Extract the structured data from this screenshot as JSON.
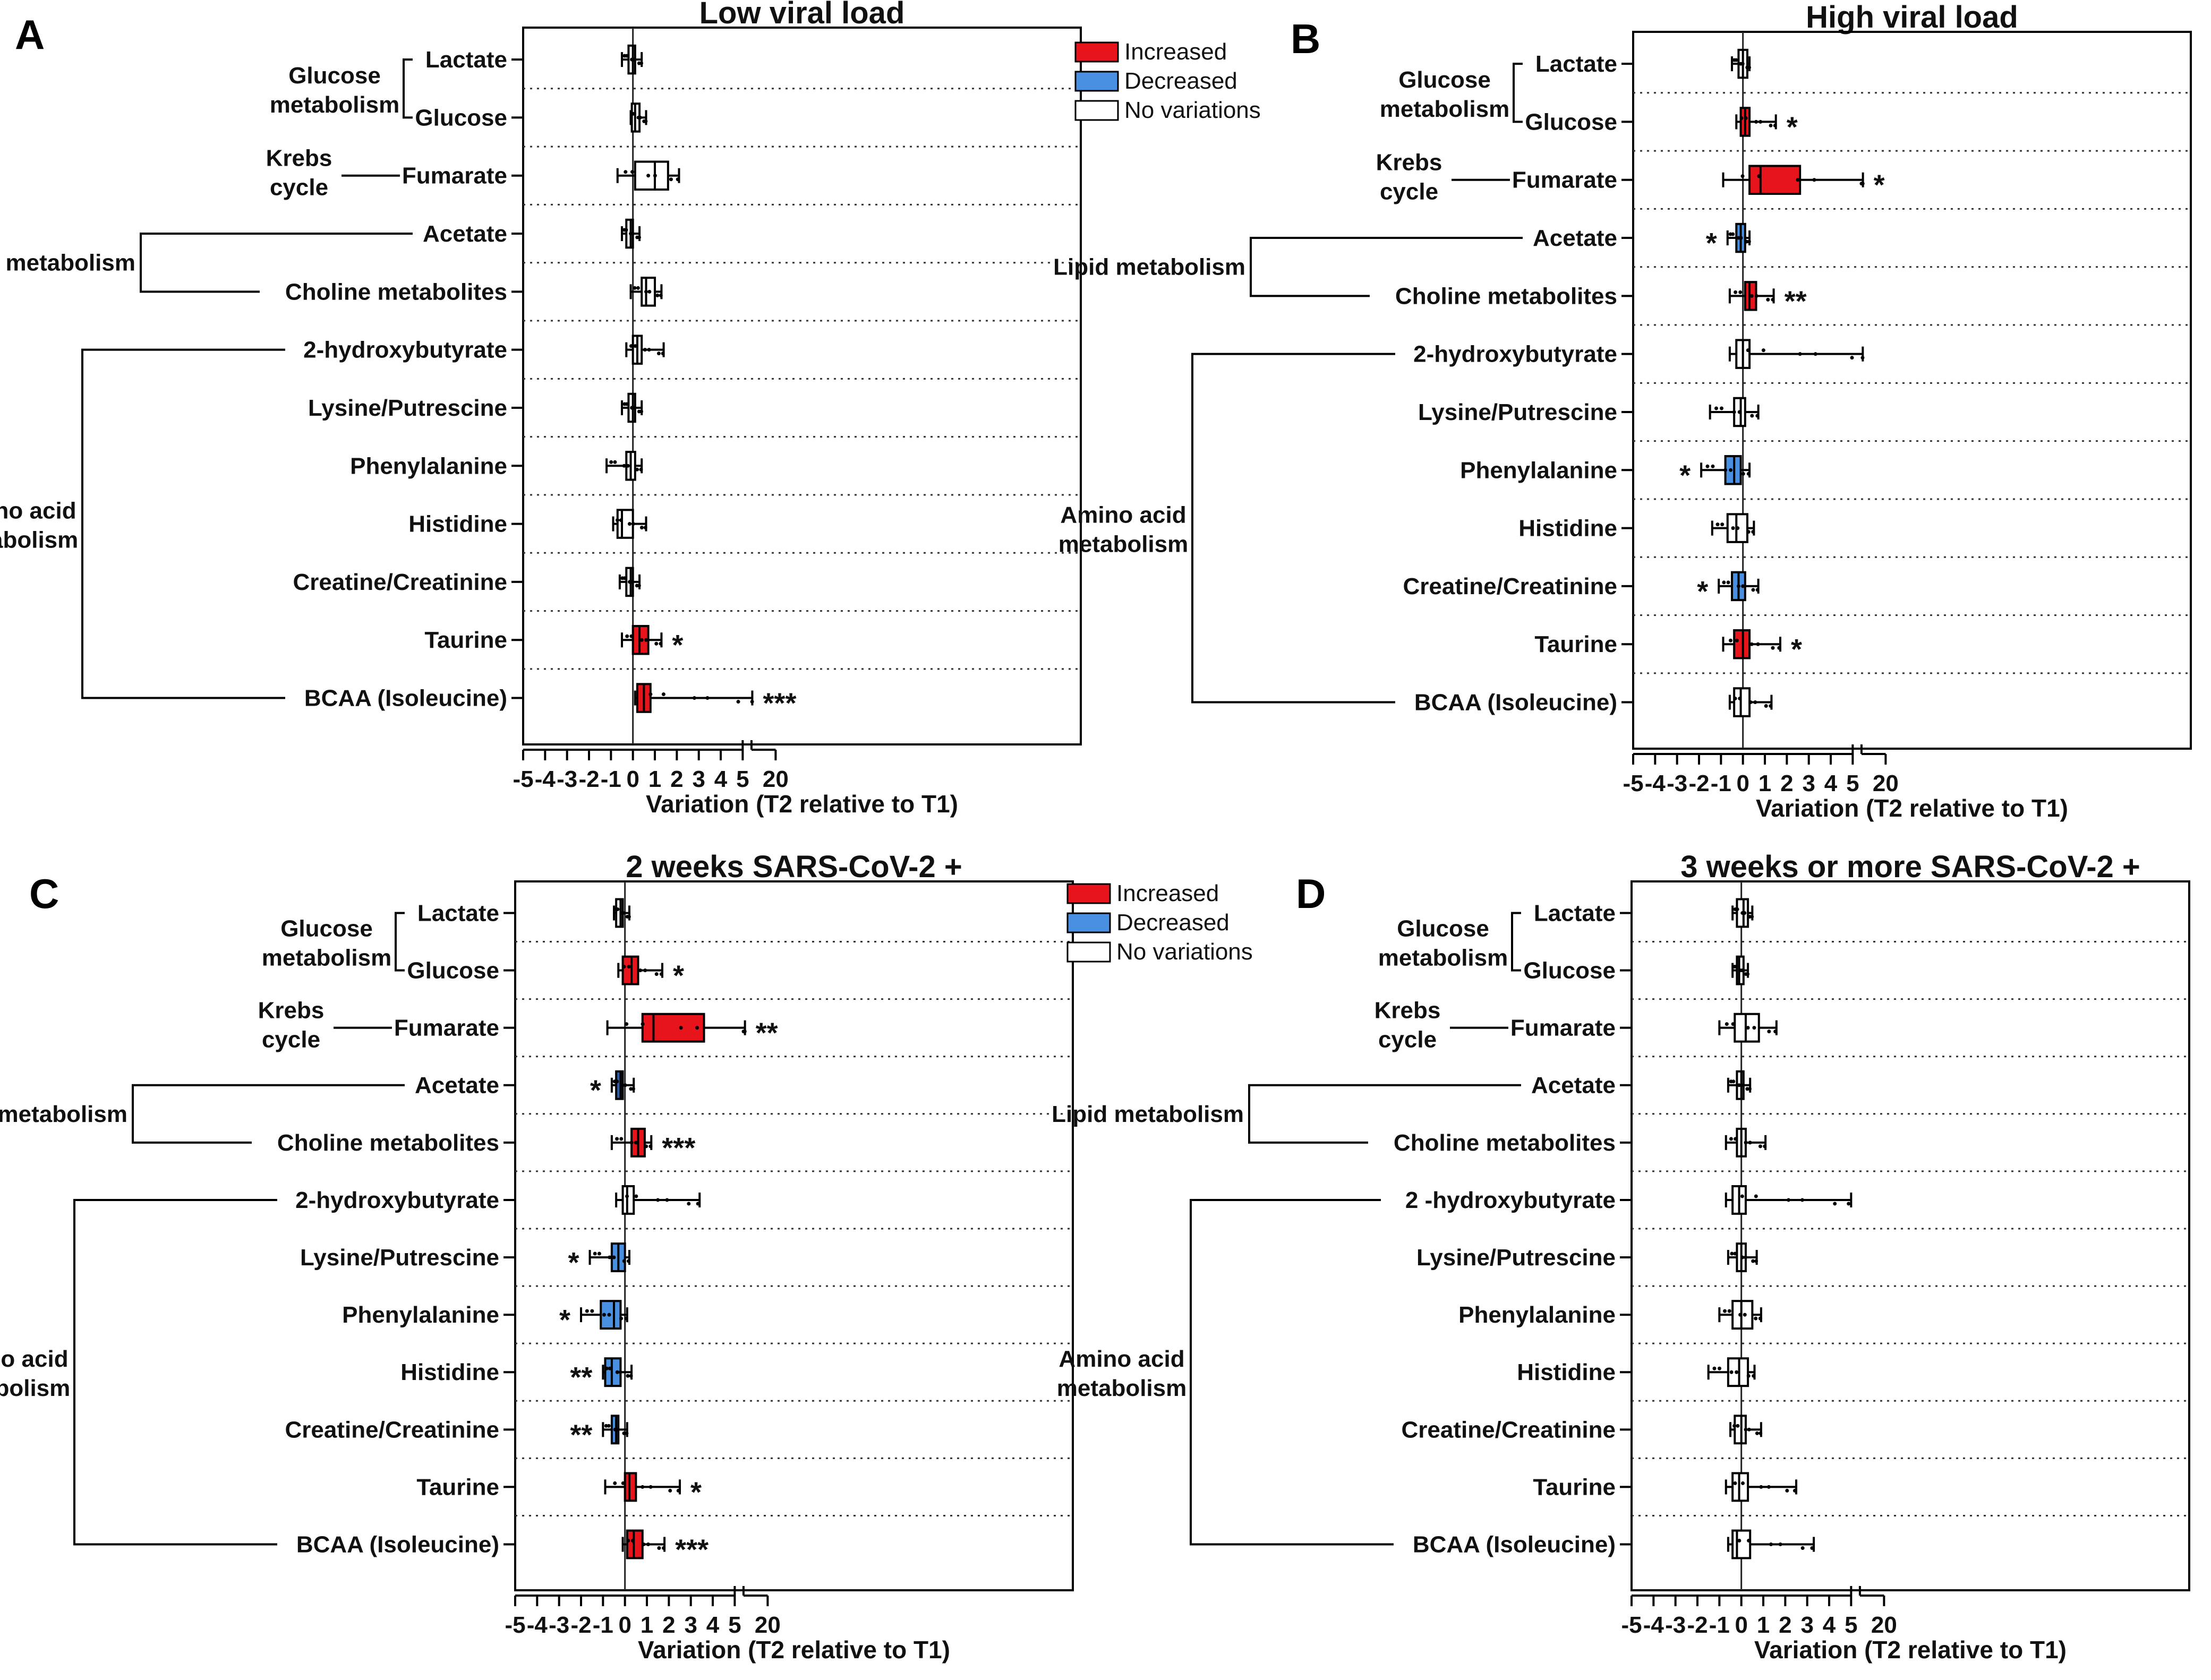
{
  "colors": {
    "increased": "#e8141c",
    "decreased": "#4a90e2",
    "none": "#ffffff",
    "decreased_dark": "#2f5fa8"
  },
  "legend": {
    "increased": "Increased",
    "decreased": "Decreased",
    "none": "No variations"
  },
  "metabolites": [
    "Lactate",
    "Glucose",
    "Fumarate",
    "Acetate",
    "Choline metabolites",
    "2-hydroxybutyrate",
    "Lysine/Putrescine",
    "Phenylalanine",
    "Histidine",
    "Creatine/Creatinine",
    "Taurine",
    "BCAA (Isoleucine)"
  ],
  "groups": [
    {
      "label": [
        "Glucose",
        "metabolism"
      ],
      "rows": [
        0,
        1
      ]
    },
    {
      "label": [
        "Krebs",
        "cycle"
      ],
      "rows": [
        2
      ]
    },
    {
      "label": [
        "Lipid metabolism"
      ],
      "rows": [
        3,
        4
      ]
    },
    {
      "label": [
        "Amino acid",
        "metabolism"
      ],
      "rows": [
        5,
        11
      ]
    }
  ],
  "chart_data": [
    {
      "type": "box",
      "panel": "A",
      "title": "Low viral load",
      "xlabel": "Variation (T2 relative to T1)",
      "xticks": [
        "-5",
        "-4",
        "-3",
        "-2",
        "-1",
        "0",
        "1",
        "2",
        "3",
        "4",
        "5",
        "20"
      ],
      "xlim": [
        -5,
        20
      ],
      "axis_break": [
        5,
        20
      ],
      "show_legend": true,
      "rows": [
        {
          "metabolite": "Lactate",
          "min": -0.5,
          "q1": -0.2,
          "median": 0.0,
          "q3": 0.1,
          "max": 0.4,
          "status": "none",
          "sig": ""
        },
        {
          "metabolite": "Glucose",
          "min": -0.1,
          "q1": -0.05,
          "median": 0.1,
          "q3": 0.3,
          "max": 0.6,
          "status": "none",
          "sig": ""
        },
        {
          "metabolite": "Fumarate",
          "min": -0.7,
          "q1": 0.1,
          "median": 1.0,
          "q3": 1.6,
          "max": 2.1,
          "status": "none",
          "sig": ""
        },
        {
          "metabolite": "Acetate",
          "min": -0.5,
          "q1": -0.3,
          "median": -0.1,
          "q3": 0.0,
          "max": 0.3,
          "status": "none",
          "sig": ""
        },
        {
          "metabolite": "Choline metabolites",
          "min": -0.1,
          "q1": 0.4,
          "median": 0.6,
          "q3": 1.0,
          "max": 1.3,
          "status": "none",
          "sig": ""
        },
        {
          "metabolite": "2-hydroxybutyrate",
          "min": -0.3,
          "q1": 0.0,
          "median": 0.2,
          "q3": 0.4,
          "max": 1.4,
          "status": "none",
          "sig": ""
        },
        {
          "metabolite": "Lysine/Putrescine",
          "min": -0.5,
          "q1": -0.2,
          "median": 0.0,
          "q3": 0.1,
          "max": 0.4,
          "status": "none",
          "sig": ""
        },
        {
          "metabolite": "Phenylalanine",
          "min": -1.2,
          "q1": -0.3,
          "median": -0.1,
          "q3": 0.1,
          "max": 0.4,
          "status": "none",
          "sig": ""
        },
        {
          "metabolite": "Histidine",
          "min": -0.9,
          "q1": -0.7,
          "median": -0.5,
          "q3": 0.0,
          "max": 0.6,
          "status": "none",
          "sig": ""
        },
        {
          "metabolite": "Creatine/Creatinine",
          "min": -0.6,
          "q1": -0.3,
          "median": -0.1,
          "q3": 0.0,
          "max": 0.3,
          "status": "none",
          "sig": ""
        },
        {
          "metabolite": "Taurine",
          "min": -0.5,
          "q1": 0.0,
          "median": 0.3,
          "q3": 0.7,
          "max": 1.3,
          "status": "increased",
          "sig": "*"
        },
        {
          "metabolite": "BCAA (Isoleucine)",
          "min": 0.1,
          "q1": 0.2,
          "median": 0.5,
          "q3": 0.8,
          "max": 5.5,
          "status": "increased",
          "sig": "***"
        }
      ]
    },
    {
      "type": "box",
      "panel": "B",
      "title": "High viral load",
      "xlabel": "Variation (T2 relative to T1)",
      "xticks": [
        "-5",
        "-4",
        "-3",
        "-2",
        "-1",
        "0",
        "1",
        "2",
        "3",
        "4",
        "5",
        "20"
      ],
      "xlim": [
        -5,
        20
      ],
      "axis_break": [
        5,
        20
      ],
      "show_legend": false,
      "rows": [
        {
          "metabolite": "Lactate",
          "min": -0.5,
          "q1": -0.2,
          "median": 0.0,
          "q3": 0.2,
          "max": 0.3,
          "status": "none",
          "sig": ""
        },
        {
          "metabolite": "Glucose",
          "min": -0.3,
          "q1": -0.1,
          "median": 0.1,
          "q3": 0.3,
          "max": 1.5,
          "status": "increased",
          "sig": "*"
        },
        {
          "metabolite": "Fumarate",
          "min": -0.9,
          "q1": 0.3,
          "median": 0.8,
          "q3": 2.6,
          "max": 5.9,
          "status": "increased",
          "sig": "*"
        },
        {
          "metabolite": "Acetate",
          "min": -0.7,
          "q1": -0.3,
          "median": -0.1,
          "q3": 0.1,
          "max": 0.3,
          "status": "decreased",
          "sig": "*"
        },
        {
          "metabolite": "Choline metabolites",
          "min": -0.6,
          "q1": 0.1,
          "median": 0.3,
          "q3": 0.6,
          "max": 1.4,
          "status": "increased",
          "sig": "**"
        },
        {
          "metabolite": "2-hydroxybutyrate",
          "min": -0.6,
          "q1": -0.3,
          "median": 0.0,
          "q3": 0.3,
          "max": 5.8,
          "status": "none",
          "sig": ""
        },
        {
          "metabolite": "Lysine/Putrescine",
          "min": -1.5,
          "q1": -0.4,
          "median": -0.1,
          "q3": 0.1,
          "max": 0.7,
          "status": "none",
          "sig": ""
        },
        {
          "metabolite": "Phenylalanine",
          "min": -1.9,
          "q1": -0.8,
          "median": -0.4,
          "q3": -0.1,
          "max": 0.3,
          "status": "decreased",
          "sig": "*"
        },
        {
          "metabolite": "Histidine",
          "min": -1.4,
          "q1": -0.7,
          "median": -0.3,
          "q3": 0.2,
          "max": 0.5,
          "status": "none",
          "sig": ""
        },
        {
          "metabolite": "Creatine/Creatinine",
          "min": -1.1,
          "q1": -0.5,
          "median": -0.2,
          "q3": 0.1,
          "max": 0.7,
          "status": "decreased",
          "sig": "*"
        },
        {
          "metabolite": "Taurine",
          "min": -0.9,
          "q1": -0.4,
          "median": 0.0,
          "q3": 0.3,
          "max": 1.7,
          "status": "increased",
          "sig": "*"
        },
        {
          "metabolite": "BCAA (Isoleucine)",
          "min": -0.6,
          "q1": -0.4,
          "median": -0.1,
          "q3": 0.3,
          "max": 1.3,
          "status": "none",
          "sig": ""
        }
      ]
    },
    {
      "type": "box",
      "panel": "C",
      "title": "2 weeks SARS-CoV-2 +",
      "xlabel": "Variation (T2 relative to T1)",
      "xticks": [
        "-5",
        "-4",
        "-3",
        "-2",
        "-1",
        "0",
        "1",
        "2",
        "3",
        "4",
        "5",
        "20"
      ],
      "xlim": [
        -5,
        20
      ],
      "axis_break": [
        5,
        20
      ],
      "show_legend": true,
      "rows": [
        {
          "metabolite": "Lactate",
          "min": -0.5,
          "q1": -0.4,
          "median": -0.2,
          "q3": -0.1,
          "max": 0.2,
          "status": "none",
          "sig": ""
        },
        {
          "metabolite": "Glucose",
          "min": -0.3,
          "q1": -0.1,
          "median": 0.3,
          "q3": 0.6,
          "max": 1.7,
          "status": "increased",
          "sig": "*"
        },
        {
          "metabolite": "Fumarate",
          "min": -0.8,
          "q1": 0.8,
          "median": 1.3,
          "q3": 3.6,
          "max": 5.9,
          "status": "increased",
          "sig": "**"
        },
        {
          "metabolite": "Acetate",
          "min": -0.6,
          "q1": -0.4,
          "median": -0.2,
          "q3": -0.1,
          "max": 0.4,
          "status": "decreased_dark",
          "sig": "*"
        },
        {
          "metabolite": "Choline metabolites",
          "min": -0.6,
          "q1": 0.3,
          "median": 0.6,
          "q3": 0.9,
          "max": 1.2,
          "status": "increased",
          "sig": "***"
        },
        {
          "metabolite": "2-hydroxybutyrate",
          "min": -0.4,
          "q1": -0.1,
          "median": 0.1,
          "q3": 0.4,
          "max": 3.4,
          "status": "none",
          "sig": ""
        },
        {
          "metabolite": "Lysine/Putrescine",
          "min": -1.6,
          "q1": -0.6,
          "median": -0.3,
          "q3": 0.0,
          "max": 0.2,
          "status": "decreased",
          "sig": "*"
        },
        {
          "metabolite": "Phenylalanine",
          "min": -2.0,
          "q1": -1.1,
          "median": -0.5,
          "q3": -0.2,
          "max": 0.1,
          "status": "decreased",
          "sig": "*"
        },
        {
          "metabolite": "Histidine",
          "min": -1.0,
          "q1": -0.9,
          "median": -0.6,
          "q3": -0.2,
          "max": 0.3,
          "status": "decreased",
          "sig": "**"
        },
        {
          "metabolite": "Creatine/Creatinine",
          "min": -1.0,
          "q1": -0.6,
          "median": -0.4,
          "q3": -0.3,
          "max": 0.1,
          "status": "decreased",
          "sig": "**"
        },
        {
          "metabolite": "Taurine",
          "min": -0.9,
          "q1": 0.0,
          "median": 0.2,
          "q3": 0.5,
          "max": 2.5,
          "status": "increased",
          "sig": "*"
        },
        {
          "metabolite": "BCAA (Isoleucine)",
          "min": -0.1,
          "q1": 0.1,
          "median": 0.4,
          "q3": 0.8,
          "max": 1.8,
          "status": "increased",
          "sig": "***"
        }
      ]
    },
    {
      "type": "box",
      "panel": "D",
      "title": "3 weeks or more SARS-CoV-2 +",
      "xlabel": "Variation (T2 relative to T1)",
      "xticks": [
        "-5",
        "-4",
        "-3",
        "-2",
        "-1",
        "0",
        "1",
        "2",
        "3",
        "4",
        "5",
        "20"
      ],
      "xlim": [
        -5,
        20
      ],
      "axis_break": [
        5,
        20
      ],
      "show_legend": false,
      "rows": [
        {
          "metabolite": "Lactate",
          "min": -0.4,
          "q1": -0.2,
          "median": 0.1,
          "q3": 0.3,
          "max": 0.5,
          "status": "none",
          "sig": ""
        },
        {
          "metabolite": "Glucose",
          "min": -0.4,
          "q1": -0.2,
          "median": -0.1,
          "q3": 0.1,
          "max": 0.3,
          "status": "none",
          "sig": ""
        },
        {
          "metabolite": "Fumarate",
          "min": -1.0,
          "q1": -0.3,
          "median": 0.2,
          "q3": 0.8,
          "max": 1.6,
          "status": "none",
          "sig": ""
        },
        {
          "metabolite": "Acetate",
          "min": -0.6,
          "q1": -0.2,
          "median": 0.0,
          "q3": 0.1,
          "max": 0.4,
          "status": "none",
          "sig": ""
        },
        {
          "metabolite": "Choline metabolites",
          "min": -0.7,
          "q1": -0.2,
          "median": 0.0,
          "q3": 0.2,
          "max": 1.1,
          "status": "none",
          "sig": ""
        },
        {
          "metabolite": "2 -hydroxybutyrate",
          "min": -0.7,
          "q1": -0.4,
          "median": -0.1,
          "q3": 0.2,
          "max": 5.0,
          "status": "none",
          "sig": ""
        },
        {
          "metabolite": "Lysine/Putrescine",
          "min": -0.6,
          "q1": -0.2,
          "median": 0.0,
          "q3": 0.2,
          "max": 0.7,
          "status": "none",
          "sig": ""
        },
        {
          "metabolite": "Phenylalanine",
          "min": -1.0,
          "q1": -0.4,
          "median": 0.0,
          "q3": 0.5,
          "max": 0.9,
          "status": "none",
          "sig": ""
        },
        {
          "metabolite": "Histidine",
          "min": -1.5,
          "q1": -0.6,
          "median": -0.1,
          "q3": 0.3,
          "max": 0.6,
          "status": "none",
          "sig": ""
        },
        {
          "metabolite": "Creatine/Creatinine",
          "min": -0.5,
          "q1": -0.3,
          "median": 0.0,
          "q3": 0.2,
          "max": 0.9,
          "status": "none",
          "sig": ""
        },
        {
          "metabolite": "Taurine",
          "min": -0.7,
          "q1": -0.4,
          "median": -0.1,
          "q3": 0.3,
          "max": 2.5,
          "status": "none",
          "sig": ""
        },
        {
          "metabolite": "BCAA (Isoleucine)",
          "min": -0.6,
          "q1": -0.4,
          "median": -0.2,
          "q3": 0.4,
          "max": 3.3,
          "status": "none",
          "sig": ""
        }
      ]
    }
  ]
}
